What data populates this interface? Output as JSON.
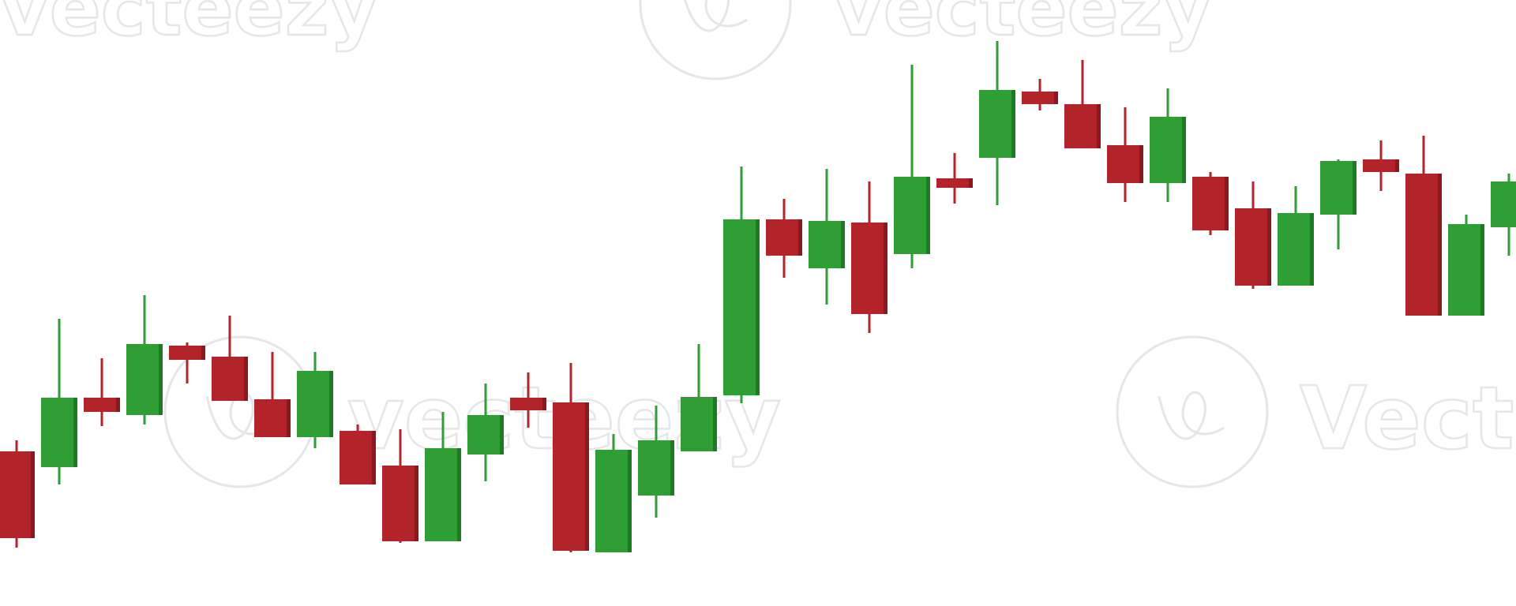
{
  "watermark": {
    "brand": "vecteezy",
    "brand_partial": "Vecte"
  },
  "colors": {
    "bullish": "#2e9e35",
    "bullish_side": "#1f7a25",
    "bearish": "#b3232a",
    "bearish_side": "#861a1f",
    "watermark": "#e6e6e6",
    "background": "#ffffff"
  },
  "chart_data": {
    "type": "candlestick",
    "title": "",
    "xlabel": "",
    "ylabel": "",
    "axes_visible": false,
    "grid": false,
    "ylim": [
      0,
      768
    ],
    "candles": [
      {
        "open": 196,
        "high": 210,
        "low": 74,
        "close": 86,
        "dir": "down"
      },
      {
        "open": 176,
        "high": 364,
        "low": 154,
        "close": 264,
        "dir": "up"
      },
      {
        "open": 264,
        "high": 314,
        "low": 228,
        "close": 246,
        "dir": "down"
      },
      {
        "open": 242,
        "high": 394,
        "low": 230,
        "close": 332,
        "dir": "up"
      },
      {
        "open": 330,
        "high": 334,
        "low": 282,
        "close": 312,
        "dir": "down"
      },
      {
        "open": 316,
        "high": 368,
        "low": 260,
        "close": 260,
        "dir": "down"
      },
      {
        "open": 262,
        "high": 322,
        "low": 214,
        "close": 214,
        "dir": "down"
      },
      {
        "open": 214,
        "high": 322,
        "low": 200,
        "close": 298,
        "dir": "up"
      },
      {
        "open": 222,
        "high": 230,
        "low": 154,
        "close": 154,
        "dir": "down"
      },
      {
        "open": 178,
        "high": 224,
        "low": 80,
        "close": 82,
        "dir": "down"
      },
      {
        "open": 82,
        "high": 246,
        "low": 82,
        "close": 200,
        "dir": "up"
      },
      {
        "open": 192,
        "high": 282,
        "low": 158,
        "close": 242,
        "dir": "up"
      },
      {
        "open": 264,
        "high": 296,
        "low": 226,
        "close": 248,
        "dir": "down"
      },
      {
        "open": 258,
        "high": 308,
        "low": 68,
        "close": 70,
        "dir": "down"
      },
      {
        "open": 68,
        "high": 218,
        "low": 70,
        "close": 198,
        "dir": "up"
      },
      {
        "open": 140,
        "high": 254,
        "low": 112,
        "close": 210,
        "dir": "up"
      },
      {
        "open": 196,
        "high": 332,
        "low": 196,
        "close": 265,
        "dir": "up"
      },
      {
        "open": 267,
        "high": 557,
        "low": 257,
        "close": 490,
        "dir": "up"
      },
      {
        "open": 490,
        "high": 516,
        "low": 416,
        "close": 444,
        "dir": "down"
      },
      {
        "open": 428,
        "high": 554,
        "low": 382,
        "close": 488,
        "dir": "up"
      },
      {
        "open": 486,
        "high": 538,
        "low": 346,
        "close": 370,
        "dir": "down"
      },
      {
        "open": 446,
        "high": 686,
        "low": 428,
        "close": 544,
        "dir": "up"
      },
      {
        "open": 542,
        "high": 574,
        "low": 510,
        "close": 530,
        "dir": "down"
      },
      {
        "open": 568,
        "high": 716,
        "low": 508,
        "close": 654,
        "dir": "up"
      },
      {
        "open": 652,
        "high": 668,
        "low": 628,
        "close": 636,
        "dir": "down"
      },
      {
        "open": 636,
        "high": 692,
        "low": 580,
        "close": 580,
        "dir": "down"
      },
      {
        "open": 584,
        "high": 632,
        "low": 512,
        "close": 536,
        "dir": "down"
      },
      {
        "open": 536,
        "high": 656,
        "low": 512,
        "close": 620,
        "dir": "up"
      },
      {
        "open": 544,
        "high": 550,
        "low": 470,
        "close": 476,
        "dir": "down"
      },
      {
        "open": 504,
        "high": 538,
        "low": 402,
        "close": 406,
        "dir": "down"
      },
      {
        "open": 406,
        "high": 532,
        "low": 406,
        "close": 498,
        "dir": "up"
      },
      {
        "open": 496,
        "high": 566,
        "low": 452,
        "close": 564,
        "dir": "up"
      },
      {
        "open": 566,
        "high": 590,
        "low": 526,
        "close": 550,
        "dir": "down"
      },
      {
        "open": 548,
        "high": 596,
        "low": 370,
        "close": 368,
        "dir": "down"
      },
      {
        "open": 368,
        "high": 496,
        "low": 370,
        "close": 484,
        "dir": "up"
      },
      {
        "open": 480,
        "high": 548,
        "low": 444,
        "close": 538,
        "dir": "up"
      }
    ]
  }
}
